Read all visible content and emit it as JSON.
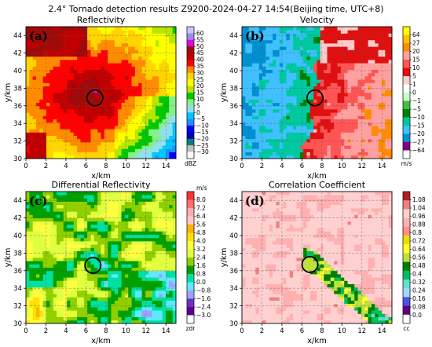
{
  "suptitle": "2.4$^\\circ$ Tornado detection results Z9200-2024-04-27 14:54(Beijing time, UTC+8)",
  "suptitle_display": "2.4° Tornado detection results Z9200-2024-04-27 14:54(Beijing time, UTC+8)",
  "chart_data": [
    {
      "type": "heatmap",
      "panel_label": "(a)",
      "title": "Reflectivity",
      "xlabel": "x/km",
      "ylabel": "y/km",
      "xlim": [
        0,
        15
      ],
      "ylim": [
        30,
        45
      ],
      "xticks": [
        "0",
        "2",
        "4",
        "6",
        "8",
        "10",
        "12",
        "14"
      ],
      "yticks": [
        "30",
        "32",
        "34",
        "36",
        "38",
        "40",
        "42",
        "44"
      ],
      "grid": true,
      "tornado_circle_center": [
        6.9,
        36.9
      ],
      "colorbar": {
        "unit": "dBZ",
        "ticks": [
          "60",
          "55",
          "50",
          "45",
          "40",
          "35",
          "30",
          "25",
          "20",
          "15",
          "10",
          "5",
          "0",
          "−5",
          "−10",
          "−15",
          "−20",
          "−25",
          "−30"
        ],
        "colors": [
          "#c9c9f9",
          "#9b8be8",
          "#e300e3",
          "#9e0a0a",
          "#c00000",
          "#ff0000",
          "#ff8c00",
          "#ffd400",
          "#ffff00",
          "#b8e600",
          "#00c800",
          "#88ee88",
          "#90e0ee",
          "#00c8ff",
          "#1e90ff",
          "#0000ff",
          "#0000b0",
          "#008080",
          "#c0c0c0",
          "#ffffff"
        ]
      }
    },
    {
      "type": "heatmap",
      "panel_label": "(b)",
      "title": "Velocity",
      "xlabel": "x/km",
      "ylabel": "y/km",
      "xlim": [
        0,
        15
      ],
      "ylim": [
        30,
        45
      ],
      "xticks": [
        "0",
        "2",
        "4",
        "6",
        "8",
        "10",
        "12",
        "14"
      ],
      "yticks": [
        "30",
        "32",
        "34",
        "36",
        "38",
        "40",
        "42",
        "44"
      ],
      "grid": true,
      "tornado_circle_center": [
        7.3,
        36.9
      ],
      "colorbar": {
        "unit": "m/s",
        "top_label": "",
        "ticks": [
          "64",
          "27",
          "20",
          "15",
          "10",
          "5",
          "1",
          "0",
          "−1",
          "−5",
          "−10",
          "−15",
          "−20",
          "−27",
          "−64"
        ],
        "colors": [
          "#ffff00",
          "#ffc000",
          "#ff8c00",
          "#ffa0a0",
          "#ff5555",
          "#e01010",
          "#ffcccc",
          "#ffffff",
          "#c8ffc8",
          "#40c040",
          "#008000",
          "#00c8a0",
          "#40c0ff",
          "#0090d0",
          "#800080",
          "#ffffff"
        ]
      }
    },
    {
      "type": "heatmap",
      "panel_label": "(c)",
      "title": "Differential Reflectivity",
      "xlabel": "x/km",
      "ylabel": "y/km",
      "xlim": [
        0,
        15
      ],
      "ylim": [
        30,
        45
      ],
      "xticks": [
        "0",
        "2",
        "4",
        "6",
        "8",
        "10",
        "12",
        "14"
      ],
      "yticks": [
        "30",
        "32",
        "34",
        "36",
        "38",
        "40",
        "42",
        "44"
      ],
      "grid": true,
      "tornado_circle_center": [
        6.7,
        36.6
      ],
      "colorbar": {
        "unit": "zdr",
        "top_unit": "m/s",
        "ticks": [
          "8.0",
          "7.2",
          "6.4",
          "5.6",
          "4.8",
          "4.0",
          "3.2",
          "2.4",
          "1.6",
          "0.8",
          "0.0",
          "−0.8",
          "−1.6",
          "−2.4",
          "−3.0"
        ],
        "colors": [
          "#ff3030",
          "#ff7070",
          "#ffaaaa",
          "#ffc8c8",
          "#ffb000",
          "#ffe000",
          "#ffff40",
          "#e0ff40",
          "#90d000",
          "#00a000",
          "#00e0a0",
          "#60e8ff",
          "#a0a0ff",
          "#7030c0",
          "#600090",
          "#ffffff"
        ]
      }
    },
    {
      "type": "heatmap",
      "panel_label": "(d)",
      "title": "Correlation Coefficient",
      "xlabel": "x/km",
      "ylabel": "y/km",
      "xlim": [
        0,
        15
      ],
      "ylim": [
        30,
        45
      ],
      "xticks": [
        "0",
        "2",
        "4",
        "6",
        "8",
        "10",
        "12",
        "14"
      ],
      "yticks": [
        "30",
        "32",
        "34",
        "36",
        "38",
        "40",
        "42",
        "44"
      ],
      "grid": true,
      "tornado_circle_center": [
        6.8,
        36.7
      ],
      "colorbar": {
        "unit": "cc",
        "ticks": [
          "1.08",
          "1.04",
          "0.96",
          "0.88",
          "0.8",
          "0.72",
          "0.64",
          "0.56",
          "0.48",
          "0.4",
          "0.32",
          "0.24",
          "0.16",
          "0.08",
          "0.0"
        ],
        "colors": [
          "#b02020",
          "#f08080",
          "#ffd0d0",
          "#ffb0b0",
          "#ff9090",
          "#e8e000",
          "#ffff30",
          "#c0e040",
          "#008000",
          "#00c060",
          "#60e0d0",
          "#a0d8ff",
          "#5050e0",
          "#600080",
          "#ffffff"
        ]
      }
    }
  ]
}
